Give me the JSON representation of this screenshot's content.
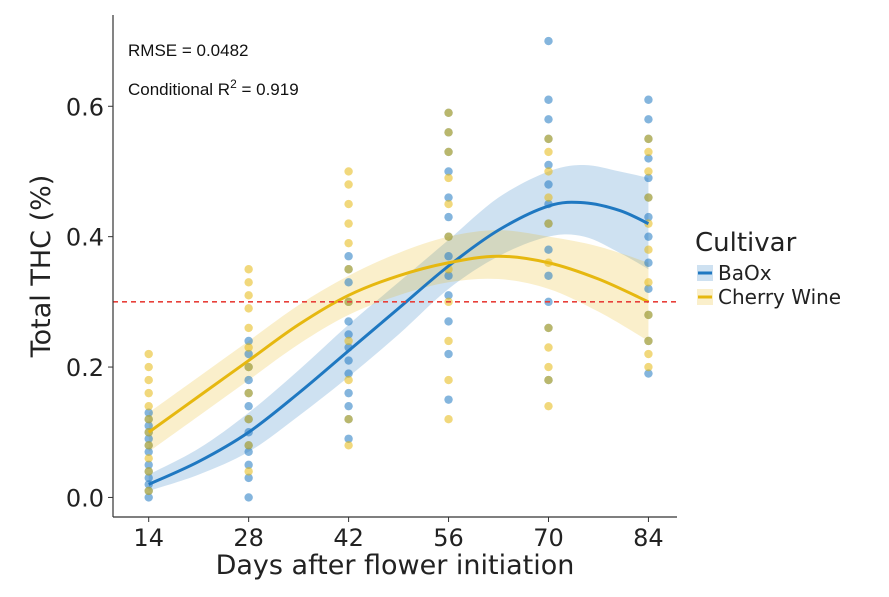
{
  "chart_data": {
    "type": "scatter",
    "xlabel": "Days after flower initiation",
    "ylabel": "Total THC (%)",
    "x_ticks": [
      14,
      28,
      42,
      56,
      70,
      84
    ],
    "y_ticks": [
      "0.0",
      "0.2",
      "0.4",
      "0.6"
    ],
    "xlim": [
      9,
      88
    ],
    "ylim": [
      -0.03,
      0.74
    ],
    "grid": false,
    "annotations": {
      "rmse": "RMSE = 0.0482",
      "r2_prefix": "Conditional R",
      "r2_sup": "2",
      "r2_suffix": " = 0.919"
    },
    "threshold": {
      "y": 0.3,
      "color": "#e8403a",
      "style": "dashed"
    },
    "legend": {
      "title": "Cultivar",
      "placement": "right"
    },
    "series": [
      {
        "name": "BaOx",
        "color": "#1f78c1",
        "fit_x": [
          14,
          21,
          28,
          35,
          42,
          49,
          56,
          63,
          70,
          75,
          80,
          84
        ],
        "fit_y": [
          0.02,
          0.055,
          0.1,
          0.16,
          0.225,
          0.29,
          0.355,
          0.41,
          0.447,
          0.452,
          0.44,
          0.42
        ],
        "ci_lower": [
          0.01,
          0.035,
          0.07,
          0.125,
          0.185,
          0.25,
          0.32,
          0.37,
          0.4,
          0.4,
          0.375,
          0.35
        ],
        "ci_upper": [
          0.035,
          0.075,
          0.13,
          0.195,
          0.265,
          0.33,
          0.395,
          0.46,
          0.5,
          0.51,
          0.5,
          0.49
        ],
        "points": {
          "14": [
            0.0,
            0.01,
            0.02,
            0.03,
            0.04,
            0.05,
            0.07,
            0.08,
            0.09,
            0.1,
            0.11,
            0.12,
            0.13
          ],
          "28": [
            0.0,
            0.03,
            0.05,
            0.07,
            0.08,
            0.1,
            0.12,
            0.14,
            0.16,
            0.18,
            0.2,
            0.22,
            0.24
          ],
          "42": [
            0.09,
            0.12,
            0.14,
            0.16,
            0.19,
            0.21,
            0.23,
            0.25,
            0.27,
            0.3,
            0.33,
            0.35,
            0.37
          ],
          "56": [
            0.15,
            0.22,
            0.27,
            0.31,
            0.34,
            0.37,
            0.4,
            0.43,
            0.46,
            0.5,
            0.53,
            0.56,
            0.59
          ],
          "70": [
            0.18,
            0.26,
            0.3,
            0.34,
            0.38,
            0.42,
            0.45,
            0.48,
            0.51,
            0.55,
            0.58,
            0.61,
            0.7
          ],
          "84": [
            0.19,
            0.24,
            0.28,
            0.32,
            0.36,
            0.4,
            0.43,
            0.46,
            0.49,
            0.52,
            0.55,
            0.58,
            0.61
          ]
        }
      },
      {
        "name": "Cherry Wine",
        "color": "#e6b810",
        "fit_x": [
          14,
          21,
          28,
          35,
          42,
          49,
          56,
          63,
          70,
          77,
          84
        ],
        "fit_y": [
          0.1,
          0.155,
          0.21,
          0.265,
          0.31,
          0.34,
          0.36,
          0.37,
          0.36,
          0.335,
          0.3
        ],
        "ci_lower": [
          0.07,
          0.125,
          0.18,
          0.235,
          0.28,
          0.31,
          0.33,
          0.335,
          0.32,
          0.285,
          0.24
        ],
        "ci_upper": [
          0.13,
          0.185,
          0.24,
          0.295,
          0.34,
          0.375,
          0.4,
          0.41,
          0.4,
          0.385,
          0.36
        ],
        "points": {
          "14": [
            0.01,
            0.04,
            0.06,
            0.08,
            0.1,
            0.12,
            0.14,
            0.16,
            0.18,
            0.2,
            0.22
          ],
          "28": [
            0.04,
            0.08,
            0.12,
            0.16,
            0.2,
            0.23,
            0.26,
            0.29,
            0.31,
            0.33,
            0.35
          ],
          "42": [
            0.08,
            0.12,
            0.18,
            0.24,
            0.3,
            0.35,
            0.39,
            0.42,
            0.45,
            0.48,
            0.5
          ],
          "56": [
            0.12,
            0.18,
            0.24,
            0.3,
            0.35,
            0.4,
            0.45,
            0.49,
            0.53,
            0.56,
            0.59
          ],
          "70": [
            0.14,
            0.18,
            0.2,
            0.23,
            0.26,
            0.36,
            0.42,
            0.46,
            0.5,
            0.53,
            0.55
          ],
          "84": [
            0.2,
            0.22,
            0.24,
            0.28,
            0.33,
            0.38,
            0.42,
            0.46,
            0.5,
            0.53,
            0.55
          ]
        }
      }
    ]
  }
}
